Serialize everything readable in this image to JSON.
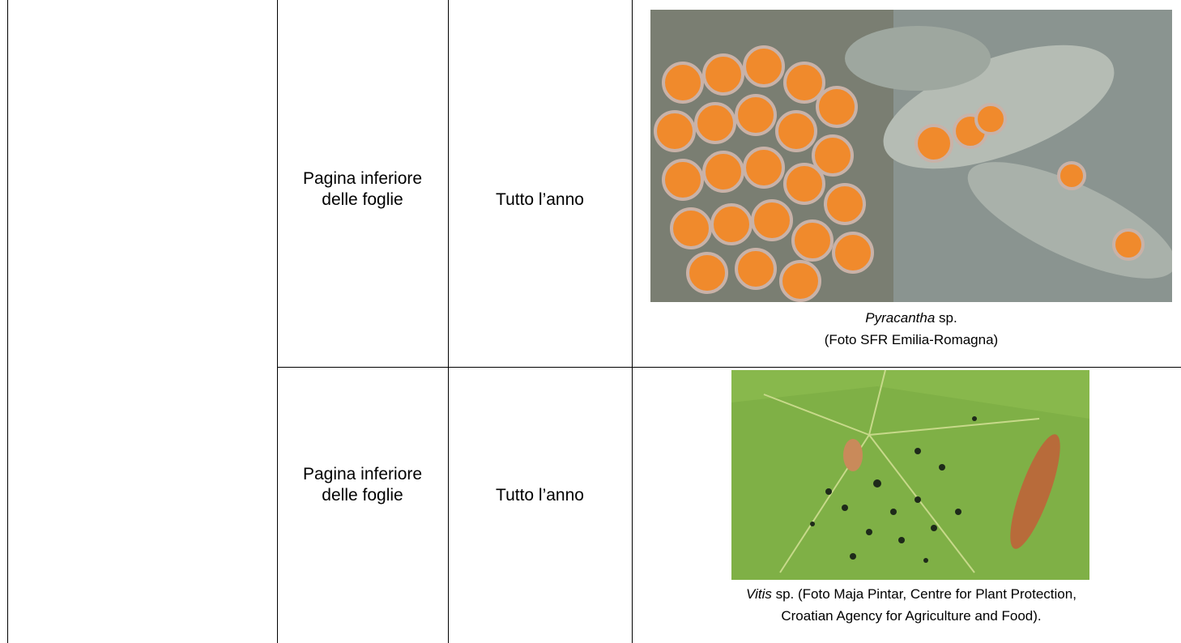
{
  "table": {
    "rows": [
      {
        "location": "Pagina inferiore delle foglie",
        "period": "Tutto l’anno",
        "caption": {
          "genus": "Pyracantha",
          "line1": "sp.",
          "line2": "(Foto SFR Emilia-Romagna)"
        }
      },
      {
        "location": "Pagina inferiore delle foglie",
        "period": "Tutto l’anno",
        "caption": {
          "genus": "Vitis",
          "line1": "sp. (Foto Maja Pintar, Centre for Plant Protection,",
          "line2": "Croatian Agency for Agriculture and Food)."
        }
      }
    ]
  }
}
